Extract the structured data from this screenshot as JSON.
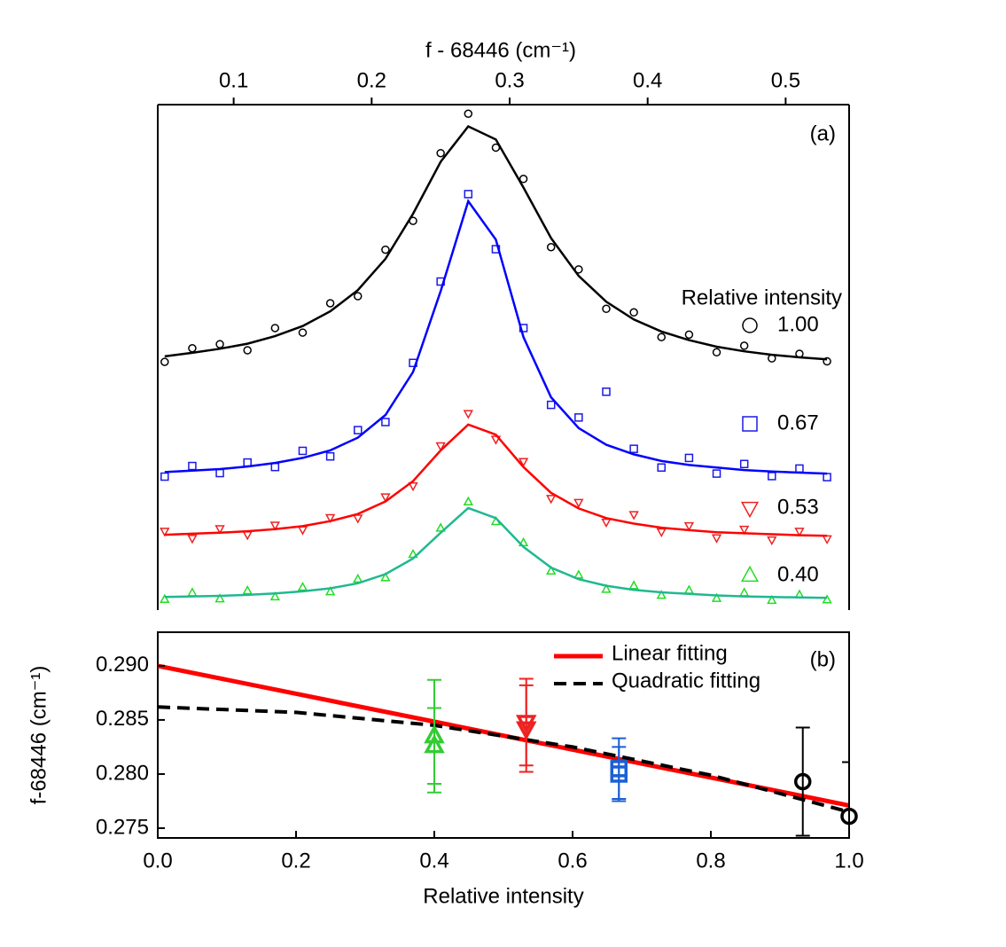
{
  "chart_data": [
    {
      "type": "scatter",
      "annotation": "(a)",
      "x_label": "f - 68446 (cm⁻¹)",
      "xlim": [
        0.045,
        0.546
      ],
      "xticks": [
        0.1,
        0.2,
        0.3,
        0.4,
        0.5
      ],
      "ylim": [
        0,
        100
      ],
      "legend_title": "Relative intensity",
      "x": [
        0.05,
        0.07,
        0.09,
        0.11,
        0.13,
        0.15,
        0.17,
        0.19,
        0.21,
        0.23,
        0.25,
        0.27,
        0.29,
        0.31,
        0.33,
        0.35,
        0.37,
        0.39,
        0.41,
        0.43,
        0.45,
        0.47,
        0.49,
        0.51,
        0.53
      ],
      "series": [
        {
          "name": "1.00",
          "color": "#000000",
          "fit_color": "#000000",
          "marker": "circle",
          "values": [
            49.1,
            51.8,
            52.6,
            51.4,
            55.8,
            54.9,
            60.7,
            62.1,
            71.3,
            77.0,
            90.4,
            98.2,
            91.5,
            85.3,
            71.8,
            67.4,
            59.6,
            58.9,
            54.0,
            54.5,
            51.0,
            52.3,
            49.8,
            50.7,
            49.2
          ],
          "fit": [
            50.2,
            50.9,
            51.7,
            52.7,
            54.2,
            56.2,
            59.1,
            63.3,
            69.5,
            78.4,
            88.7,
            95.7,
            93.1,
            83.6,
            73.6,
            66.1,
            61.0,
            57.5,
            55.1,
            53.4,
            52.1,
            51.2,
            50.5,
            50.0,
            49.6
          ]
        },
        {
          "name": "0.67",
          "color": "#1a1ae6",
          "fit_color": "#0000ff",
          "marker": "square",
          "values": [
            26.4,
            28.5,
            27.1,
            29.2,
            28.3,
            31.5,
            30.4,
            35.6,
            37.2,
            48.9,
            65.0,
            82.3,
            71.4,
            55.8,
            40.6,
            38.1,
            43.2,
            31.9,
            28.2,
            30.1,
            27.0,
            28.9,
            26.5,
            28.0,
            26.3
          ],
          "fit": [
            27.3,
            27.6,
            27.9,
            28.4,
            29.1,
            30.1,
            31.6,
            34.1,
            38.6,
            47.1,
            63.1,
            80.9,
            73.3,
            54.0,
            42.1,
            36.0,
            32.7,
            30.8,
            29.5,
            28.7,
            28.2,
            27.7,
            27.4,
            27.2,
            27.0
          ]
        },
        {
          "name": "0.53",
          "color": "#ee2222",
          "fit_color": "#ff0000",
          "marker": "tri-down",
          "values": [
            15.6,
            14.2,
            16.1,
            14.9,
            16.8,
            15.9,
            18.3,
            18.2,
            22.4,
            24.6,
            32.5,
            38.9,
            33.8,
            29.4,
            22.1,
            21.3,
            17.4,
            18.9,
            15.5,
            16.7,
            14.3,
            16.0,
            13.9,
            15.6,
            14.1
          ],
          "fit": [
            14.9,
            15.1,
            15.3,
            15.6,
            16.0,
            16.6,
            17.6,
            19.0,
            21.5,
            25.5,
            31.6,
            36.7,
            34.7,
            28.3,
            23.2,
            20.1,
            18.2,
            17.1,
            16.3,
            15.8,
            15.4,
            15.2,
            15.0,
            14.8,
            14.7
          ]
        },
        {
          "name": "0.40",
          "color": "#22dd22",
          "fit_color": "#20b890",
          "marker": "tri-up",
          "values": [
            2.1,
            3.4,
            2.2,
            3.8,
            2.6,
            4.5,
            3.6,
            6.1,
            6.4,
            11.0,
            16.2,
            21.4,
            17.5,
            13.3,
            7.7,
            6.9,
            4.1,
            4.8,
            2.9,
            3.9,
            2.3,
            3.4,
            1.9,
            3.0,
            2.0
          ],
          "fit": [
            2.6,
            2.7,
            2.8,
            3.0,
            3.3,
            3.7,
            4.3,
            5.3,
            7.1,
            10.2,
            15.3,
            20.2,
            18.2,
            12.5,
            8.4,
            6.1,
            4.8,
            4.0,
            3.5,
            3.2,
            2.9,
            2.7,
            2.6,
            2.5,
            2.4
          ]
        }
      ]
    },
    {
      "type": "errorbar",
      "annotation": "(b)",
      "x_label": "Relative intensity",
      "y_label": "f-68446 (cm⁻¹)",
      "xlim": [
        0,
        1
      ],
      "xticks": [
        {
          "value": 0,
          "label": "0.0"
        },
        0.2,
        0.4,
        0.6,
        0.8,
        {
          "value": 1,
          "label": "1.0"
        }
      ],
      "ylim": [
        0.2741,
        0.2931
      ],
      "yticks": [
        {
          "value": 0.275,
          "label": "0.275"
        },
        {
          "value": 0.28,
          "label": "0.280"
        },
        {
          "value": 0.285,
          "label": "0.285"
        },
        {
          "value": 0.29,
          "label": "0.290"
        }
      ],
      "series": [
        {
          "color": "#33cc33",
          "marker": "tri-up",
          "x": [
            0.4,
            0.4
          ],
          "values": [
            0.2835,
            0.2826
          ],
          "errors": [
            0.0052,
            0.0035
          ]
        },
        {
          "color": "#ee2222",
          "marker": "tri-down",
          "x": [
            0.533,
            0.533
          ],
          "values": [
            0.2848,
            0.2842
          ],
          "errors": [
            0.004,
            0.004
          ]
        },
        {
          "color": "#1a5fd6",
          "marker": "square",
          "x": [
            0.667,
            0.667
          ],
          "values": [
            0.2805,
            0.28
          ],
          "errors": [
            0.0028,
            0.0025
          ]
        },
        {
          "color": "#000000",
          "marker": "circle",
          "x": [
            0.933,
            1.0
          ],
          "values": [
            0.2793,
            0.2761
          ],
          "errors": [
            0.005,
            0.005
          ]
        }
      ],
      "fits": [
        {
          "name": "Linear fitting",
          "color": "#ff0000",
          "dashed": false,
          "x": [
            0,
            1
          ],
          "values": [
            0.29,
            0.2771
          ]
        },
        {
          "name": "Quadratic fitting",
          "color": "#000000",
          "dashed": true,
          "x": [
            0,
            0.2,
            0.4,
            0.6,
            0.8,
            1.0
          ],
          "values": [
            0.2862,
            0.2857,
            0.2845,
            0.2825,
            0.2799,
            0.2765
          ]
        }
      ]
    }
  ]
}
